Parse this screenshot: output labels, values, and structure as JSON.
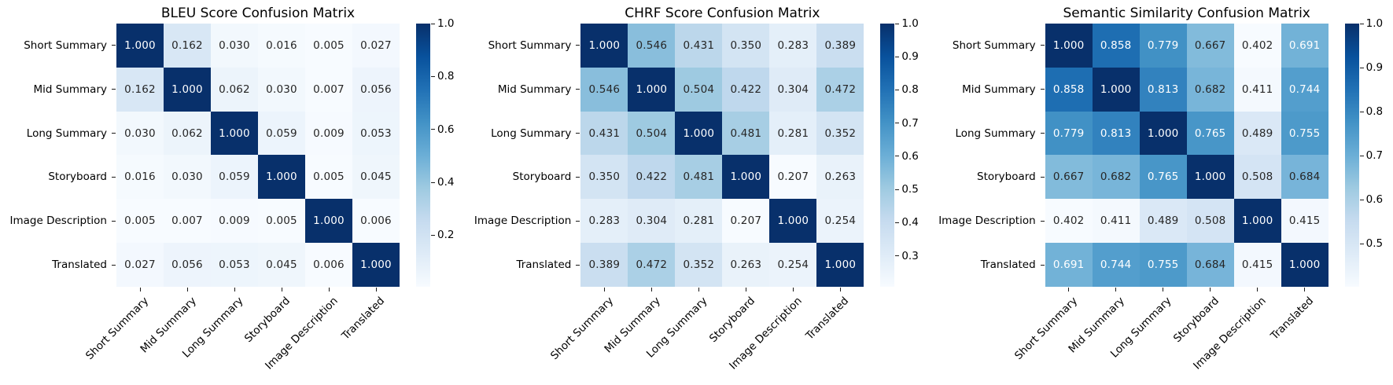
{
  "figure": {
    "background": "#ffffff",
    "colormap": "Blues",
    "colors": {
      "cmap_dark": "#08306b",
      "cmap_light": "#f7fbff",
      "annotation_dark": "#262626",
      "annotation_light": "#ffffff",
      "tick_color": "#1a1a1a"
    }
  },
  "chart_data": [
    {
      "type": "heatmap",
      "title": "BLEU Score Confusion Matrix",
      "categories": [
        "Short Summary",
        "Mid Summary",
        "Long Summary",
        "Storyboard",
        "Image Description",
        "Translated"
      ],
      "matrix": [
        [
          1.0,
          0.162,
          0.03,
          0.016,
          0.005,
          0.027
        ],
        [
          0.162,
          1.0,
          0.062,
          0.03,
          0.007,
          0.056
        ],
        [
          0.03,
          0.062,
          1.0,
          0.059,
          0.009,
          0.053
        ],
        [
          0.016,
          0.03,
          0.059,
          1.0,
          0.005,
          0.045
        ],
        [
          0.005,
          0.007,
          0.009,
          0.005,
          1.0,
          0.006
        ],
        [
          0.027,
          0.056,
          0.053,
          0.045,
          0.006,
          1.0
        ]
      ],
      "vmin": 0.005,
      "vmax": 1.0,
      "colorbar_ticks": [
        1.0,
        0.8,
        0.6,
        0.4,
        0.2
      ],
      "value_format": ".3f",
      "legend_position": "right",
      "grid": false
    },
    {
      "type": "heatmap",
      "title": "CHRF Score Confusion Matrix",
      "categories": [
        "Short Summary",
        "Mid Summary",
        "Long Summary",
        "Storyboard",
        "Image Description",
        "Translated"
      ],
      "matrix": [
        [
          1.0,
          0.546,
          0.431,
          0.35,
          0.283,
          0.389
        ],
        [
          0.546,
          1.0,
          0.504,
          0.422,
          0.304,
          0.472
        ],
        [
          0.431,
          0.504,
          1.0,
          0.481,
          0.281,
          0.352
        ],
        [
          0.35,
          0.422,
          0.481,
          1.0,
          0.207,
          0.263
        ],
        [
          0.283,
          0.304,
          0.281,
          0.207,
          1.0,
          0.254
        ],
        [
          0.389,
          0.472,
          0.352,
          0.263,
          0.254,
          1.0
        ]
      ],
      "vmin": 0.207,
      "vmax": 1.0,
      "colorbar_ticks": [
        1.0,
        0.9,
        0.8,
        0.7,
        0.6,
        0.5,
        0.4,
        0.3
      ],
      "value_format": ".3f",
      "legend_position": "right",
      "grid": false
    },
    {
      "type": "heatmap",
      "title": "Semantic Similarity Confusion Matrix",
      "categories": [
        "Short Summary",
        "Mid Summary",
        "Long Summary",
        "Storyboard",
        "Image Description",
        "Translated"
      ],
      "matrix": [
        [
          1.0,
          0.858,
          0.779,
          0.667,
          0.402,
          0.691
        ],
        [
          0.858,
          1.0,
          0.813,
          0.682,
          0.411,
          0.744
        ],
        [
          0.779,
          0.813,
          1.0,
          0.765,
          0.489,
          0.755
        ],
        [
          0.667,
          0.682,
          0.765,
          1.0,
          0.508,
          0.684
        ],
        [
          0.402,
          0.411,
          0.489,
          0.508,
          1.0,
          0.415
        ],
        [
          0.691,
          0.744,
          0.755,
          0.684,
          0.415,
          1.0
        ]
      ],
      "vmin": 0.402,
      "vmax": 1.0,
      "colorbar_ticks": [
        1.0,
        0.9,
        0.8,
        0.7,
        0.6,
        0.5
      ],
      "value_format": ".3f",
      "legend_position": "right",
      "grid": false
    }
  ]
}
